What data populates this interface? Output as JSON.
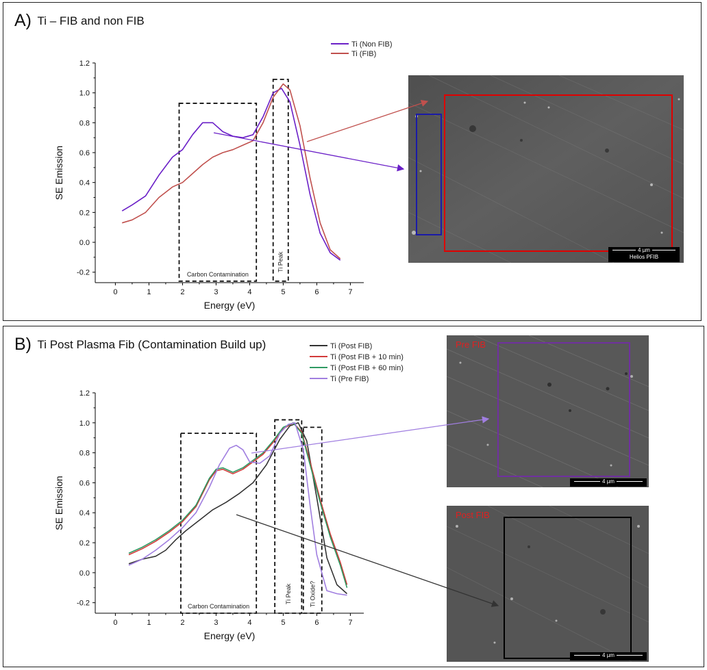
{
  "panel_a": {
    "letter": "A)",
    "title": "Ti – FIB and non FIB",
    "sem": {
      "scale_label": "4 µm",
      "instrument_label": "Helios PFIB"
    }
  },
  "panel_b": {
    "letter": "B)",
    "title": "Ti Post Plasma Fib (Contamination Build up)",
    "sem_pre": {
      "label": "Pre FIB",
      "scale_label": "4 µm"
    },
    "sem_post": {
      "label": "Post FIB",
      "scale_label": "4 µm"
    }
  },
  "colors": {
    "non_fib": "#6a1fc7",
    "fib": "#c0504d",
    "post_fib": "#333333",
    "post_fib_10": "#d23a3a",
    "post_fib_60": "#2e9a62",
    "pre_fib": "#a07ee0",
    "frame_red": "#e00000",
    "frame_blue": "#1a1aa8",
    "frame_purple": "#7030a0",
    "frame_black": "#000000"
  },
  "chart_data": [
    {
      "type": "line",
      "xlabel": "Energy (eV)",
      "ylabel": "SE Emission",
      "xlim": [
        -0.6,
        7.4
      ],
      "ylim": [
        -0.27,
        1.2
      ],
      "xticks": [
        0,
        1,
        2,
        3,
        4,
        5,
        6,
        7
      ],
      "yticks": [
        -0.2,
        0.0,
        0.2,
        0.4,
        0.6,
        0.8,
        1.0,
        1.2
      ],
      "ytick_labels": [
        "-0.2",
        "0.0",
        "0.2",
        "0.4",
        "0.6",
        "0.8",
        "1.0",
        "1.2"
      ],
      "legend_position": "top-center",
      "series": [
        {
          "name": "Ti (Non FIB)",
          "color": "#6a1fc7",
          "x": [
            0.2,
            0.5,
            0.9,
            1.3,
            1.7,
            2.0,
            2.3,
            2.6,
            2.9,
            3.2,
            3.5,
            3.8,
            4.1,
            4.4,
            4.7,
            4.95,
            5.2,
            5.5,
            5.8,
            6.1,
            6.4,
            6.7
          ],
          "y": [
            0.21,
            0.25,
            0.31,
            0.45,
            0.57,
            0.62,
            0.72,
            0.8,
            0.8,
            0.74,
            0.71,
            0.7,
            0.72,
            0.84,
            1.0,
            1.03,
            0.94,
            0.65,
            0.32,
            0.06,
            -0.07,
            -0.12
          ]
        },
        {
          "name": "Ti (FIB)",
          "color": "#c0504d",
          "x": [
            0.2,
            0.5,
            0.9,
            1.3,
            1.7,
            2.0,
            2.3,
            2.6,
            2.9,
            3.2,
            3.5,
            3.8,
            4.1,
            4.4,
            4.7,
            5.0,
            5.2,
            5.5,
            5.8,
            6.1,
            6.4,
            6.7
          ],
          "y": [
            0.13,
            0.15,
            0.2,
            0.3,
            0.37,
            0.4,
            0.46,
            0.52,
            0.57,
            0.6,
            0.62,
            0.65,
            0.68,
            0.8,
            0.97,
            1.06,
            1.02,
            0.78,
            0.43,
            0.13,
            -0.05,
            -0.11
          ]
        }
      ],
      "annotations": [
        {
          "text": "Carbon Contamination",
          "x_range": [
            1.9,
            4.2
          ],
          "y_range": [
            -0.26,
            0.93
          ]
        },
        {
          "text": "Ti Peak",
          "x_range": [
            4.7,
            5.15
          ],
          "y_range": [
            -0.26,
            1.09
          ]
        }
      ]
    },
    {
      "type": "line",
      "xlabel": "Energy (eV)",
      "ylabel": "SE Emission",
      "xlim": [
        -0.6,
        7.4
      ],
      "ylim": [
        -0.27,
        1.2
      ],
      "xticks": [
        0,
        1,
        2,
        3,
        4,
        5,
        6,
        7
      ],
      "yticks": [
        -0.2,
        0.0,
        0.2,
        0.4,
        0.6,
        0.8,
        1.0,
        1.2
      ],
      "ytick_labels": [
        "-0.2",
        "0.0",
        "0.2",
        "0.4",
        "0.6",
        "0.8",
        "1.0",
        "1.2"
      ],
      "legend_position": "top-right",
      "series": [
        {
          "name": "Ti (Post FIB)",
          "color": "#333333",
          "x": [
            0.4,
            0.8,
            1.2,
            1.5,
            1.8,
            2.1,
            2.5,
            2.9,
            3.3,
            3.7,
            4.1,
            4.5,
            4.9,
            5.2,
            5.45,
            5.7,
            6.0,
            6.3,
            6.6,
            6.9
          ],
          "y": [
            0.06,
            0.09,
            0.11,
            0.15,
            0.22,
            0.28,
            0.35,
            0.42,
            0.47,
            0.53,
            0.6,
            0.72,
            0.89,
            0.98,
            1.0,
            0.88,
            0.5,
            0.1,
            -0.08,
            -0.14
          ]
        },
        {
          "name": "Ti (Post FIB + 10 min)",
          "color": "#d23a3a",
          "x": [
            0.4,
            0.8,
            1.2,
            1.6,
            2.0,
            2.4,
            2.8,
            3.0,
            3.2,
            3.5,
            3.8,
            4.1,
            4.4,
            4.7,
            5.0,
            5.3,
            5.55,
            5.8,
            6.1,
            6.4,
            6.7,
            6.9
          ],
          "y": [
            0.12,
            0.16,
            0.21,
            0.27,
            0.34,
            0.44,
            0.62,
            0.68,
            0.69,
            0.66,
            0.69,
            0.74,
            0.79,
            0.87,
            0.96,
            1.0,
            0.94,
            0.74,
            0.49,
            0.26,
            0.07,
            -0.08
          ]
        },
        {
          "name": "Ti (Post FIB + 60 min)",
          "color": "#2e9a62",
          "x": [
            0.4,
            0.8,
            1.2,
            1.6,
            2.0,
            2.4,
            2.8,
            3.0,
            3.2,
            3.5,
            3.8,
            4.1,
            4.4,
            4.7,
            5.0,
            5.3,
            5.55,
            5.8,
            6.1,
            6.4,
            6.7,
            6.9
          ],
          "y": [
            0.13,
            0.17,
            0.22,
            0.28,
            0.35,
            0.45,
            0.63,
            0.69,
            0.7,
            0.67,
            0.7,
            0.75,
            0.8,
            0.88,
            0.97,
            1.0,
            0.93,
            0.72,
            0.47,
            0.24,
            0.05,
            -0.1
          ]
        },
        {
          "name": "Ti (Pre FIB)",
          "color": "#a07ee0",
          "x": [
            0.4,
            0.8,
            1.2,
            1.6,
            2.0,
            2.4,
            2.8,
            3.1,
            3.4,
            3.6,
            3.8,
            4.0,
            4.3,
            4.6,
            4.9,
            5.15,
            5.35,
            5.6,
            5.8,
            6.0,
            6.3,
            6.6,
            6.9
          ],
          "y": [
            0.05,
            0.09,
            0.15,
            0.22,
            0.3,
            0.4,
            0.57,
            0.72,
            0.83,
            0.85,
            0.82,
            0.74,
            0.73,
            0.78,
            0.93,
            0.99,
            1.0,
            0.82,
            0.45,
            0.12,
            -0.12,
            -0.14,
            -0.15
          ]
        }
      ],
      "annotations": [
        {
          "text": "Carbon Contamination",
          "x_range": [
            1.95,
            4.2
          ],
          "y_range": [
            -0.27,
            0.93
          ]
        },
        {
          "text": "Ti Peak",
          "x_range": [
            4.75,
            5.55
          ],
          "y_range": [
            -0.27,
            1.02
          ]
        },
        {
          "text": "Ti Oxide?",
          "x_range": [
            5.6,
            6.15
          ],
          "y_range": [
            -0.27,
            0.97
          ]
        }
      ]
    }
  ]
}
